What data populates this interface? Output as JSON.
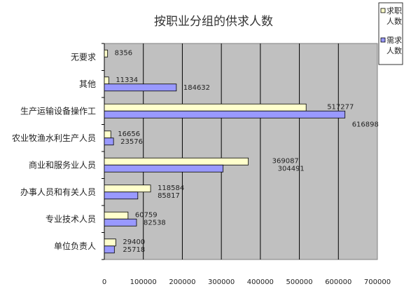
{
  "chart_data": {
    "type": "bar",
    "orientation": "horizontal",
    "title": "按职业分组的供求人数",
    "categories": [
      "无要求",
      "其他",
      "生产运输设备操作工",
      "农业牧渔水利生产人员",
      "商业和服务业人员",
      "办事人员和有关人员",
      "专业技术人员",
      "单位负责人"
    ],
    "series": [
      {
        "name": "求职人数",
        "color": "#ffffcc",
        "values": [
          8356,
          11334,
          517277,
          16656,
          369087,
          118584,
          60759,
          29400
        ]
      },
      {
        "name": "需求人数",
        "color": "#9999ff",
        "values": [
          null,
          184632,
          616898,
          23576,
          304491,
          85817,
          82538,
          25718
        ]
      }
    ],
    "xlim": [
      0,
      700000
    ],
    "xticks": [
      0,
      100000,
      200000,
      300000,
      400000,
      500000,
      600000,
      700000
    ],
    "xtick_labels": [
      "0",
      "100000",
      "200000",
      "300000",
      "400000",
      "500000",
      "600000",
      "700000"
    ],
    "grid": true,
    "plot_background": "#c0c0c0",
    "legend_position": "top-right"
  }
}
